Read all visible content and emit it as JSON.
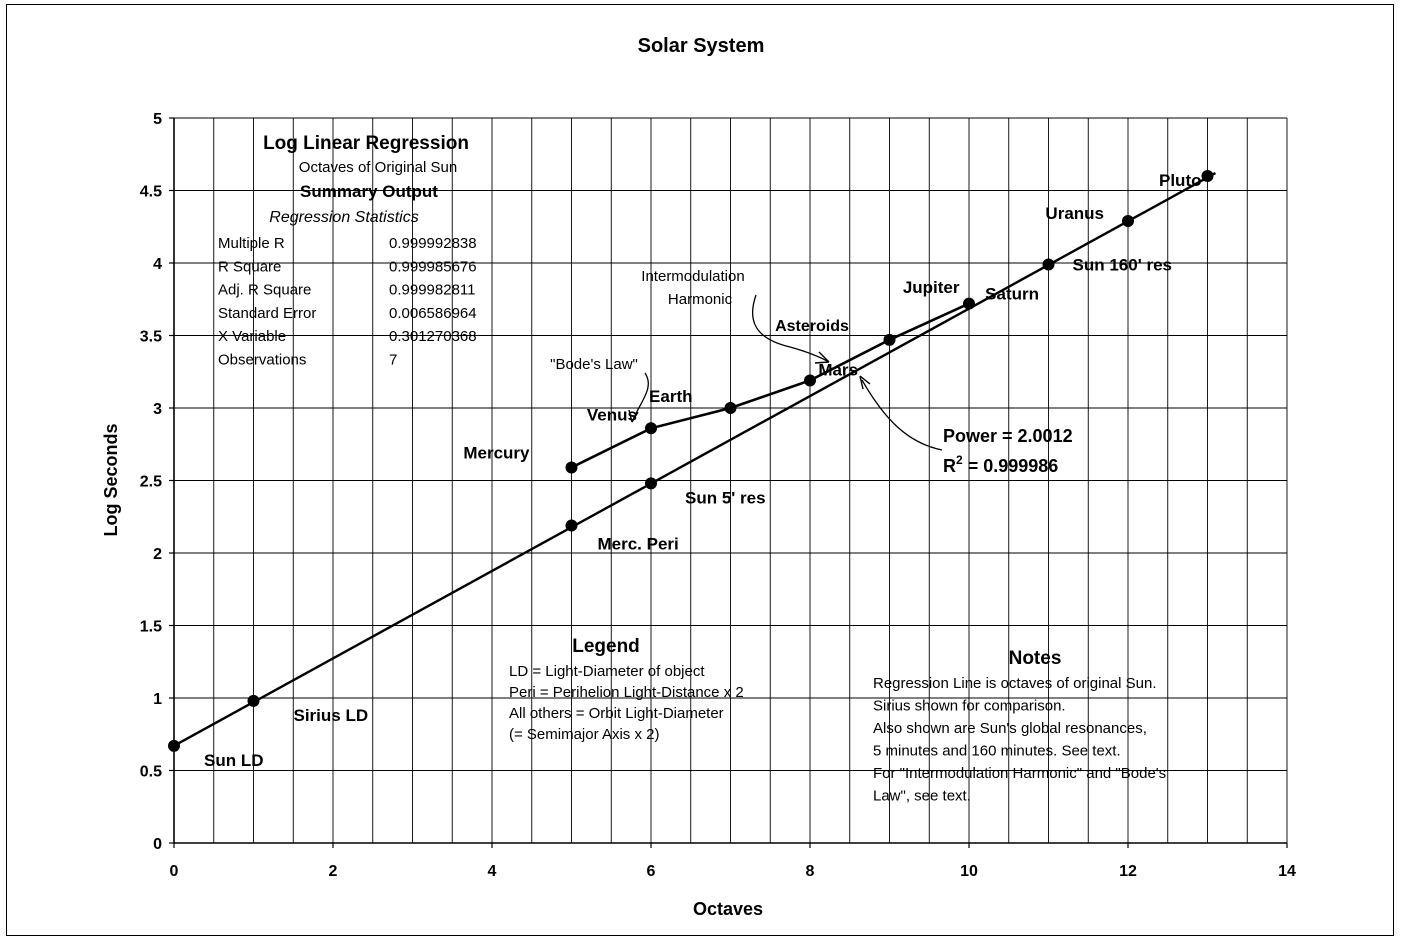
{
  "chart_data": {
    "type": "scatter",
    "title": "Solar System",
    "xlabel": "Octaves",
    "ylabel": "Log Seconds",
    "xlim": [
      0,
      14
    ],
    "ylim": [
      0,
      5
    ],
    "grid": true,
    "x_ticks": [
      "0",
      "2",
      "4",
      "6",
      "8",
      "10",
      "12",
      "14"
    ],
    "y_ticks": [
      "0",
      "0.5",
      "1",
      "1.5",
      "2",
      "2.5",
      "3",
      "3.5",
      "4",
      "4.5",
      "5"
    ],
    "series": [
      {
        "name": "",
        "points": [
          {
            "label": "Sun LD",
            "x": 0,
            "y": 0.67
          },
          {
            "label": "Sirius LD",
            "x": 1,
            "y": 0.98
          },
          {
            "label": "Merc. Peri",
            "x": 5,
            "y": 2.19
          },
          {
            "label": "Sun 5' res",
            "x": 6,
            "y": 2.48
          },
          {
            "label": "Sun 160' res",
            "x": 11,
            "y": 3.99
          },
          {
            "label": "Uranus",
            "x": 12,
            "y": 4.29
          },
          {
            "label": "Pluto",
            "x": 13,
            "y": 4.6
          }
        ]
      },
      {
        "name": "",
        "points": [
          {
            "label": "Mercury",
            "x": 5,
            "y": 2.59
          },
          {
            "label": "Venus",
            "x": 6,
            "y": 2.86
          },
          {
            "label": "Earth",
            "x": 7,
            "y": 3.0
          },
          {
            "label": "Mars",
            "x": 8,
            "y": 3.19
          },
          {
            "label": "Jupiter",
            "x": 9,
            "y": 3.47
          },
          {
            "label": "Saturn",
            "x": 10,
            "y": 3.72
          }
        ]
      }
    ],
    "regression_line": {
      "x": [
        0,
        13.1
      ],
      "y": [
        0.67,
        4.62
      ]
    },
    "annotations": {
      "intermodulation": [
        "Intermodulation",
        "Harmonic"
      ],
      "bodes_law": "\"Bode's Law\"",
      "asteroids": "Asteroids",
      "power": "Power = 2.0012",
      "r2_prefix": "R",
      "r2_sup": "2",
      "r2_value": " = 0.999986"
    },
    "regression_box": {
      "title": "Log Linear Regression",
      "subtitle": "Octaves of Original Sun",
      "summary": "Summary Output",
      "stats_heading": "Regression Statistics",
      "rows": [
        {
          "label": "Multiple R",
          "value": "0.999992838"
        },
        {
          "label": "R Square",
          "value": "0.999985676"
        },
        {
          "label": "Adj. R Square",
          "value": "0.999982811"
        },
        {
          "label": "Standard Error",
          "value": "0.006586964"
        },
        {
          "label": "X Variable",
          "value": "0.301270368"
        },
        {
          "label": "Observations",
          "value": "7"
        }
      ]
    },
    "legend_box": {
      "title": "Legend",
      "lines": [
        "LD = Light-Diameter of object",
        "Peri = Perihelion Light-Distance x 2",
        "All others = Orbit Light-Diameter",
        "(= Semimajor Axis x 2)"
      ]
    },
    "notes_box": {
      "title": "Notes",
      "lines": [
        "Regression Line is octaves of original Sun.",
        "Sirius shown for comparison.",
        "Also shown are Sun's global resonances,",
        "5 minutes and 160 minutes. See text.",
        "For \"Intermodulation Harmonic\" and \"Bode's",
        "Law\", see text."
      ]
    }
  }
}
